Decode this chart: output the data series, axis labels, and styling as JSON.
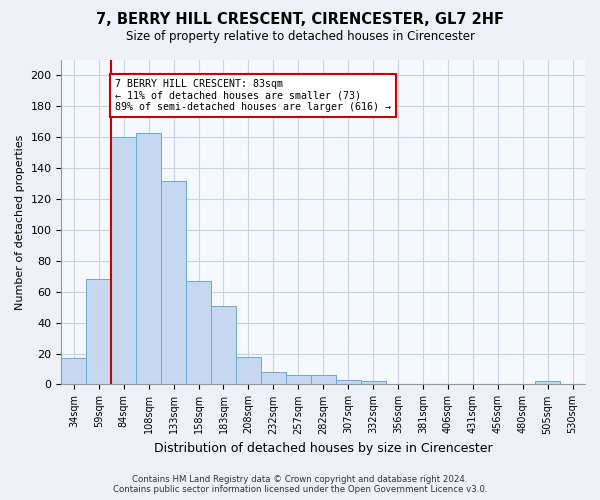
{
  "title1": "7, BERRY HILL CRESCENT, CIRENCESTER, GL7 2HF",
  "title2": "Size of property relative to detached houses in Cirencester",
  "xlabel": "Distribution of detached houses by size in Cirencester",
  "ylabel": "Number of detached properties",
  "categories": [
    "34sqm",
    "59sqm",
    "84sqm",
    "108sqm",
    "133sqm",
    "158sqm",
    "183sqm",
    "208sqm",
    "232sqm",
    "257sqm",
    "282sqm",
    "307sqm",
    "332sqm",
    "356sqm",
    "381sqm",
    "406sqm",
    "431sqm",
    "456sqm",
    "480sqm",
    "505sqm",
    "530sqm"
  ],
  "values": [
    17,
    68,
    160,
    163,
    132,
    67,
    51,
    18,
    8,
    6,
    6,
    3,
    2,
    0,
    0,
    0,
    0,
    0,
    0,
    2,
    0
  ],
  "bar_color": "#c5d8ef",
  "bar_edge_color": "#6aaad4",
  "vline_index": 2,
  "vline_color": "#cc0000",
  "annotation_line1": "7 BERRY HILL CRESCENT: 83sqm",
  "annotation_line2": "← 11% of detached houses are smaller (73)",
  "annotation_line3": "89% of semi-detached houses are larger (616) →",
  "annotation_box_color": "#cc0000",
  "ylim": [
    0,
    210
  ],
  "yticks": [
    0,
    20,
    40,
    60,
    80,
    100,
    120,
    140,
    160,
    180,
    200
  ],
  "footnote": "Contains HM Land Registry data © Crown copyright and database right 2024.\nContains public sector information licensed under the Open Government Licence v3.0.",
  "bg_color": "#eef2f8",
  "plot_bg_color": "#f5f8fd",
  "grid_color": "#c8d4e4"
}
